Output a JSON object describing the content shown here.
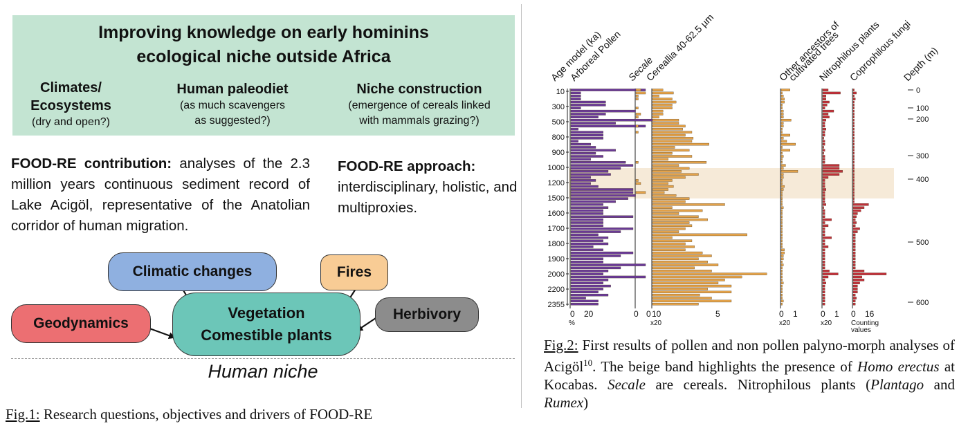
{
  "left": {
    "title_line1": "Improving knowledge on early hominins",
    "title_line2": "ecological niche outside Africa",
    "columns": [
      {
        "head_line1": "Climates/",
        "head_line2": "Ecosystems",
        "sub_line1": "(dry and open?)",
        "sub_line2": ""
      },
      {
        "head_line1": "Human paleodiet",
        "head_line2": "",
        "sub_line1": "(as much scavengers",
        "sub_line2": "as suggested?)"
      },
      {
        "head_line1": "Niche construction",
        "head_line2": "",
        "sub_line1": "(emergence of cereals linked",
        "sub_line2": "with mammals grazing?)"
      }
    ],
    "contribution_label": "FOOD-RE contribution:",
    "contribution_text": " analyses of the 2.3 million years continuous sediment record of Lake Acigöl, representative of the Anatolian corridor of human migration.",
    "approach_label": "FOOD-RE approach:",
    "approach_text": "interdisciplinary, holistic, and multiproxies.",
    "drivers": {
      "climatic": "Climatic changes",
      "fires": "Fires",
      "geodynamics": "Geodynamics",
      "herbivory": "Herbivory",
      "vegetation_line1": "Vegetation",
      "vegetation_line2": "Comestible plants"
    },
    "niche_label": "Human niche",
    "caption_prefix": "Fig.1:",
    "caption_text": " Research questions, objectives and drivers of FOOD-RE"
  },
  "right": {
    "caption_prefix": "Fig.2:",
    "caption_part1": " First results of pollen and non pollen palyno-morph analyses of Acigöl",
    "caption_sup": "10",
    "caption_part2": ". The beige band highlights the presence of ",
    "caption_italic1": "Homo erectus",
    "caption_part3": " at Kocabas. ",
    "caption_italic2": "Secale",
    "caption_part4": " are cereals. Nitrophilous plants (",
    "caption_italic3": "Plantago",
    "caption_part5": " and ",
    "caption_italic4": "Rumex",
    "caption_part6": ")"
  },
  "chart_data": {
    "type": "bar",
    "orientation": "horizontal",
    "age_ticks": [
      "10",
      "300",
      "500",
      "800",
      "900",
      "1000",
      "1200",
      "1500",
      "1600",
      "1700",
      "1800",
      "1900",
      "2000",
      "2200",
      "2355"
    ],
    "depth_ticks": [
      "0",
      "100",
      "200",
      "300",
      "400",
      "500",
      "600"
    ],
    "highlight_band_label": "",
    "highlight_color": "#f6ead8",
    "colors": {
      "arboreal": "#6a3a96",
      "cereal": "#e3a24a",
      "npp": "#c0313a"
    },
    "panels": [
      {
        "name": "Age model (ka)",
        "xticks": [],
        "xunit": ""
      },
      {
        "name": "Arboreal Pollen",
        "xticks": [
          "0",
          "20"
        ],
        "xunit": "%",
        "values": [
          30,
          4,
          4,
          4,
          14,
          14,
          4,
          26,
          14,
          11,
          34,
          18,
          30,
          3,
          13,
          13,
          13,
          3,
          8,
          10,
          18,
          10,
          13,
          8,
          22,
          25,
          20,
          15,
          16,
          8,
          10,
          8,
          11,
          25,
          25,
          26,
          23,
          18,
          13,
          15,
          13,
          13,
          25,
          13,
          13,
          13,
          25,
          20,
          11,
          15,
          13,
          15,
          9,
          13,
          25,
          20,
          13,
          13,
          30,
          20,
          15,
          13,
          30,
          15,
          13,
          16,
          13,
          11,
          15,
          6,
          11,
          11
        ]
      },
      {
        "name": "Secale",
        "xticks": [
          "0"
        ],
        "xunit": "",
        "values": [
          2,
          4,
          1,
          1,
          0,
          0,
          1,
          0,
          2,
          1,
          0,
          0,
          1,
          0,
          1,
          0,
          0,
          0,
          0,
          0,
          0,
          0,
          0,
          0,
          1,
          0,
          0,
          0,
          0,
          0,
          1,
          2,
          0,
          0,
          4,
          0,
          0,
          0,
          0,
          0,
          0,
          0,
          0,
          0,
          0,
          0,
          0,
          0,
          0,
          0,
          0,
          0,
          0,
          0,
          0,
          0,
          0,
          0,
          0,
          0,
          0,
          0,
          0,
          0,
          0,
          0,
          0,
          0,
          0,
          0,
          0,
          0
        ]
      },
      {
        "name": "Cereallia 40-62.5 µm",
        "xticks": [
          "0",
          "10",
          "5"
        ],
        "xunit": "x20",
        "values": [
          0.8,
          1.6,
          0.5,
          1.5,
          1.8,
          1.5,
          1.5,
          0.8,
          0.8,
          0.5,
          2.0,
          2.0,
          2.5,
          2.3,
          3.0,
          2.5,
          3.1,
          3.0,
          4.3,
          1.7,
          2.8,
          1.5,
          3.0,
          1.2,
          4.1,
          2.0,
          2.8,
          2.2,
          3.5,
          2.5,
          1.5,
          1.2,
          1.6,
          1.2,
          0.9,
          1.8,
          2.8,
          2.5,
          5.5,
          1.5,
          3.8,
          2.0,
          3.5,
          4.2,
          2.8,
          3.0,
          2.5,
          2.0,
          7.2,
          1.5,
          3.0,
          2.5,
          3.2,
          2.5,
          3.8,
          4.5,
          3.5,
          4.2,
          5.0,
          3.2,
          4.5,
          8.7,
          6.8,
          5.5,
          5.0,
          6.0,
          4.2,
          6.0,
          3.6,
          4.5,
          6.0,
          3.5
        ]
      },
      {
        "name": "Other ancestors of cultivated trees",
        "xticks": [
          "0",
          "1"
        ],
        "xunit": "x20",
        "values": [
          0.8,
          0.1,
          0.2,
          0.3,
          0.3,
          0.1,
          0.1,
          0.2,
          0.2,
          0.2,
          0.9,
          0.2,
          0.2,
          0.1,
          0.1,
          0.8,
          0.2,
          0.5,
          1.3,
          0.1,
          0.8,
          0.1,
          0.2,
          0.1,
          0.1,
          0.4,
          0.2,
          1.5,
          0.2,
          0.2,
          0.1,
          0.1,
          0.3,
          0.2,
          0.1,
          0.1,
          0.1,
          0.1,
          0.1,
          0.2,
          0.1,
          0.1,
          0.1,
          0.1,
          0.1,
          0.1,
          0.1,
          0.1,
          0.1,
          0.1,
          0.1,
          0.1,
          0.1,
          0.3,
          0.3,
          0.2,
          0.2,
          0.1,
          0.2,
          0.1,
          0.1,
          0.1,
          0.1,
          0.1,
          0.2,
          0.1,
          0.1,
          0.1,
          0.1,
          0.1,
          0.2,
          0.1
        ]
      },
      {
        "name": "Nitrophilous plants",
        "xticks": [
          "0",
          "1"
        ],
        "xunit": "x20",
        "values": [
          0.5,
          1.6,
          0.3,
          0.3,
          0.6,
          0.4,
          0.2,
          1.0,
          0.5,
          0.6,
          0.3,
          0.2,
          0.2,
          0.3,
          0.2,
          0.2,
          0.1,
          0.2,
          0.2,
          0.1,
          0.2,
          0.1,
          0.2,
          0.2,
          0.2,
          1.5,
          1.5,
          1.8,
          1.5,
          0.5,
          0.2,
          0.2,
          0.2,
          0.3,
          0.2,
          0.2,
          0.2,
          0.2,
          0.3,
          0.1,
          0.2,
          0.2,
          0.2,
          0.8,
          0.2,
          0.5,
          0.2,
          0.2,
          0.2,
          0.8,
          0.2,
          0.2,
          0.5,
          0.2,
          0.2,
          0.2,
          0.2,
          0.2,
          0.2,
          0.2,
          0.6,
          1.4,
          0.5,
          0.2,
          0.3,
          0.2,
          0.2,
          0.2,
          0.2,
          0.2,
          0.2,
          0.2
        ]
      },
      {
        "name": "Coprophilous fungi",
        "xticks": [
          "0",
          "16"
        ],
        "xunit": "Counting values",
        "values": [
          1,
          3,
          1,
          2,
          1,
          1,
          1,
          1,
          1,
          1,
          1,
          1,
          1,
          1,
          1,
          1,
          1,
          1,
          1,
          1,
          1,
          1,
          1,
          1,
          1,
          1,
          1,
          1,
          1,
          1,
          1,
          1,
          1,
          1,
          1,
          1,
          1,
          1,
          14,
          10,
          7,
          4,
          3,
          2,
          3,
          2,
          6,
          4,
          2,
          2,
          2,
          2,
          2,
          2,
          2,
          2,
          2,
          2,
          2,
          2,
          10,
          30,
          8,
          10,
          6,
          4,
          4,
          4,
          2,
          3,
          2,
          2
        ]
      },
      {
        "name": "Depth (m)",
        "xticks": [],
        "xunit": ""
      }
    ]
  }
}
